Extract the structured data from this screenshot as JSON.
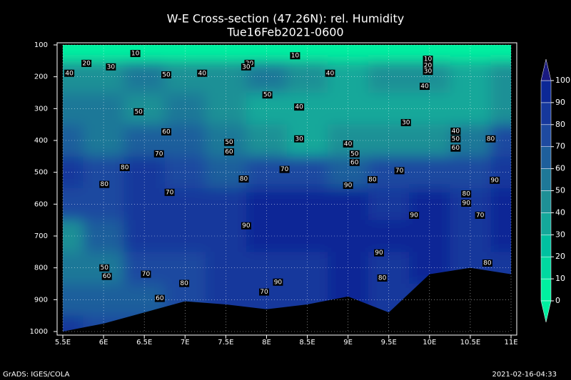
{
  "chart_data": {
    "type": "contour",
    "title": "W-E Cross-section (47.26N): rel. Humidity",
    "subtitle": "Tue16Feb2021-0600",
    "footer_left": "GrADS: IGES/COLA",
    "footer_right": "2021-02-16-04:33",
    "xlim": [
      5.5,
      11
    ],
    "ylim": [
      1000,
      100
    ],
    "xticks": [
      {
        "value": 5.5,
        "label": "5.5E"
      },
      {
        "value": 6,
        "label": "6E"
      },
      {
        "value": 6.5,
        "label": "6.5E"
      },
      {
        "value": 7,
        "label": "7E"
      },
      {
        "value": 7.5,
        "label": "7.5E"
      },
      {
        "value": 8,
        "label": "8E"
      },
      {
        "value": 8.5,
        "label": "8.5E"
      },
      {
        "value": 9,
        "label": "9E"
      },
      {
        "value": 9.5,
        "label": "9.5E"
      },
      {
        "value": 10,
        "label": "10E"
      },
      {
        "value": 10.5,
        "label": "10.5E"
      },
      {
        "value": 11,
        "label": "11E"
      }
    ],
    "yticks": [
      100,
      200,
      300,
      400,
      500,
      600,
      700,
      800,
      900,
      1000
    ],
    "grid": true,
    "lon": [
      5.5,
      6,
      6.5,
      7,
      7.5,
      8,
      8.5,
      9,
      9.5,
      10,
      10.5,
      11
    ],
    "levels": [
      100,
      200,
      300,
      400,
      500,
      600,
      700,
      800,
      900,
      1000
    ],
    "humidity": [
      [
        8,
        8,
        8,
        8,
        8,
        8,
        8,
        8,
        8,
        8,
        8,
        8
      ],
      [
        45,
        45,
        50,
        45,
        40,
        50,
        40,
        35,
        40,
        40,
        35,
        40
      ],
      [
        55,
        50,
        45,
        50,
        40,
        35,
        30,
        35,
        35,
        30,
        35,
        40
      ],
      [
        60,
        55,
        60,
        60,
        50,
        40,
        30,
        40,
        45,
        45,
        50,
        70
      ],
      [
        80,
        75,
        80,
        72,
        65,
        72,
        72,
        65,
        75,
        72,
        70,
        85
      ],
      [
        70,
        78,
        82,
        82,
        85,
        92,
        92,
        90,
        88,
        90,
        88,
        90
      ],
      [
        45,
        60,
        82,
        85,
        88,
        92,
        92,
        92,
        92,
        92,
        80,
        92
      ],
      [
        50,
        55,
        70,
        78,
        85,
        88,
        88,
        90,
        85,
        90,
        88,
        85
      ],
      [
        65,
        60,
        65,
        75,
        80,
        80,
        85,
        90,
        80,
        85,
        85,
        85
      ],
      [
        80,
        75,
        78,
        80,
        82,
        82,
        85,
        88,
        82,
        85,
        85,
        85
      ]
    ],
    "surface_pressure": [
      1000,
      975,
      940,
      905,
      915,
      930,
      915,
      890,
      940,
      820,
      800,
      820
    ],
    "contour_labels": [
      {
        "lon": 6.39,
        "p": 127,
        "value": 10
      },
      {
        "lon": 5.79,
        "p": 158,
        "value": 20
      },
      {
        "lon": 6.09,
        "p": 169,
        "value": 30
      },
      {
        "lon": 5.58,
        "p": 189,
        "value": 40
      },
      {
        "lon": 6.77,
        "p": 194,
        "value": 50
      },
      {
        "lon": 7.21,
        "p": 189,
        "value": 40
      },
      {
        "lon": 7.79,
        "p": 158,
        "value": 20
      },
      {
        "lon": 7.75,
        "p": 169,
        "value": 30
      },
      {
        "lon": 8.35,
        "p": 134,
        "value": 10
      },
      {
        "lon": 8.78,
        "p": 189,
        "value": 40
      },
      {
        "lon": 8.01,
        "p": 257,
        "value": 50
      },
      {
        "lon": 8.4,
        "p": 295,
        "value": 40
      },
      {
        "lon": 9.98,
        "p": 145,
        "value": 10
      },
      {
        "lon": 9.98,
        "p": 165,
        "value": 20
      },
      {
        "lon": 9.98,
        "p": 183,
        "value": 30
      },
      {
        "lon": 9.94,
        "p": 230,
        "value": 40
      },
      {
        "lon": 6.43,
        "p": 310,
        "value": 50
      },
      {
        "lon": 6.77,
        "p": 373,
        "value": 60
      },
      {
        "lon": 9.71,
        "p": 344,
        "value": 30
      },
      {
        "lon": 8.4,
        "p": 395,
        "value": 30
      },
      {
        "lon": 10.32,
        "p": 371,
        "value": 40
      },
      {
        "lon": 10.32,
        "p": 395,
        "value": 50
      },
      {
        "lon": 10.32,
        "p": 424,
        "value": 60
      },
      {
        "lon": 10.75,
        "p": 395,
        "value": 80
      },
      {
        "lon": 7.54,
        "p": 406,
        "value": 50
      },
      {
        "lon": 7.54,
        "p": 436,
        "value": 60
      },
      {
        "lon": 9.0,
        "p": 411,
        "value": 40
      },
      {
        "lon": 9.08,
        "p": 442,
        "value": 50
      },
      {
        "lon": 9.08,
        "p": 469,
        "value": 60
      },
      {
        "lon": 6.68,
        "p": 442,
        "value": 70
      },
      {
        "lon": 6.26,
        "p": 485,
        "value": 80
      },
      {
        "lon": 8.22,
        "p": 491,
        "value": 70
      },
      {
        "lon": 9.63,
        "p": 495,
        "value": 70
      },
      {
        "lon": 7.72,
        "p": 521,
        "value": 80
      },
      {
        "lon": 9.3,
        "p": 523,
        "value": 80
      },
      {
        "lon": 10.8,
        "p": 525,
        "value": 90
      },
      {
        "lon": 9.0,
        "p": 541,
        "value": 90
      },
      {
        "lon": 6.01,
        "p": 538,
        "value": 80
      },
      {
        "lon": 6.81,
        "p": 563,
        "value": 70
      },
      {
        "lon": 10.45,
        "p": 568,
        "value": 80
      },
      {
        "lon": 10.45,
        "p": 597,
        "value": 90
      },
      {
        "lon": 10.62,
        "p": 635,
        "value": 70
      },
      {
        "lon": 9.81,
        "p": 635,
        "value": 90
      },
      {
        "lon": 7.75,
        "p": 668,
        "value": 90
      },
      {
        "lon": 9.38,
        "p": 753,
        "value": 90
      },
      {
        "lon": 6.01,
        "p": 800,
        "value": 50
      },
      {
        "lon": 6.04,
        "p": 827,
        "value": 60
      },
      {
        "lon": 6.52,
        "p": 820,
        "value": 70
      },
      {
        "lon": 6.99,
        "p": 849,
        "value": 80
      },
      {
        "lon": 8.14,
        "p": 845,
        "value": 90
      },
      {
        "lon": 10.71,
        "p": 785,
        "value": 80
      },
      {
        "lon": 9.42,
        "p": 832,
        "value": 80
      },
      {
        "lon": 7.97,
        "p": 876,
        "value": 70
      },
      {
        "lon": 6.69,
        "p": 896,
        "value": 60
      }
    ],
    "colorbar": {
      "ticks": [
        0,
        10,
        20,
        30,
        40,
        50,
        60,
        70,
        80,
        90,
        100
      ],
      "colors": [
        "#00f0a0",
        "#00d8a0",
        "#00c0a0",
        "#14a89a",
        "#1e9096",
        "#1e7898",
        "#1e5f9c",
        "#1e4aa0",
        "#16389c",
        "#0c2896"
      ]
    }
  }
}
